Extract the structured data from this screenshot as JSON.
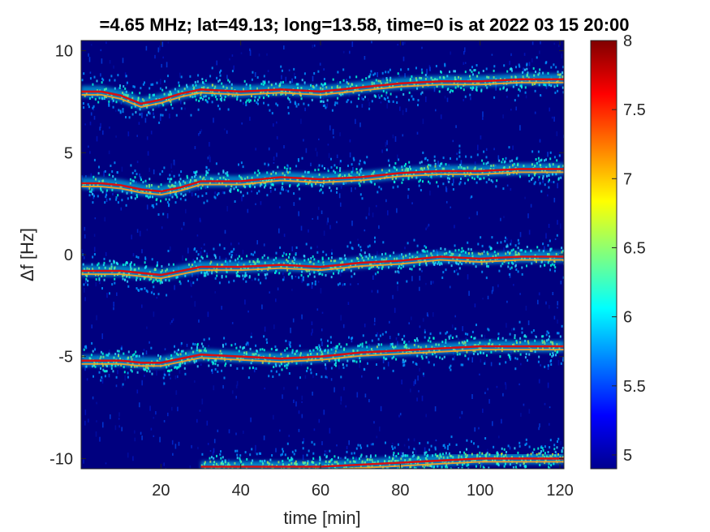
{
  "chart_data": {
    "type": "heatmap",
    "title": "=4.65 MHz;  lat=49.13; long=13.58, time=0 is at 2022 03 15 20:00",
    "xlabel": "time [min]",
    "ylabel": "Δf [Hz]",
    "xlim": [
      0,
      121
    ],
    "ylim": [
      -10.5,
      10.5
    ],
    "x_ticks": [
      20,
      40,
      60,
      80,
      100,
      120
    ],
    "y_ticks": [
      10,
      5,
      0,
      -5,
      -10
    ],
    "colorbar": {
      "range": [
        4.9,
        8
      ],
      "ticks": [
        8,
        7.5,
        7,
        6.5,
        6,
        5.5,
        5
      ],
      "colormap": "jet"
    },
    "background_color": "#00007f",
    "traces": [
      {
        "x": [
          0,
          5,
          10,
          15,
          20,
          25,
          30,
          40,
          50,
          60,
          70,
          80,
          90,
          100,
          110,
          121
        ],
        "y": [
          8.0,
          8.0,
          7.8,
          7.4,
          7.6,
          7.9,
          8.1,
          8.0,
          8.1,
          8.0,
          8.2,
          8.4,
          8.5,
          8.5,
          8.6,
          8.6
        ]
      },
      {
        "x": [
          0,
          5,
          10,
          15,
          20,
          25,
          30,
          40,
          50,
          60,
          70,
          80,
          90,
          100,
          110,
          121
        ],
        "y": [
          3.5,
          3.5,
          3.4,
          3.2,
          3.1,
          3.3,
          3.6,
          3.6,
          3.8,
          3.7,
          3.8,
          4.0,
          4.1,
          4.1,
          4.2,
          4.2
        ]
      },
      {
        "x": [
          0,
          5,
          10,
          15,
          20,
          25,
          30,
          40,
          50,
          60,
          70,
          80,
          90,
          100,
          110,
          121
        ],
        "y": [
          -0.8,
          -0.8,
          -0.8,
          -0.9,
          -1.0,
          -0.8,
          -0.6,
          -0.6,
          -0.5,
          -0.6,
          -0.4,
          -0.3,
          -0.1,
          -0.2,
          -0.1,
          -0.1
        ]
      },
      {
        "x": [
          0,
          5,
          10,
          15,
          20,
          25,
          30,
          40,
          50,
          60,
          70,
          80,
          90,
          100,
          110,
          121
        ],
        "y": [
          -5.2,
          -5.2,
          -5.2,
          -5.3,
          -5.3,
          -5.1,
          -4.9,
          -5.0,
          -5.1,
          -5.0,
          -4.8,
          -4.7,
          -4.6,
          -4.5,
          -4.5,
          -4.5
        ]
      },
      {
        "x": [
          30,
          40,
          50,
          60,
          70,
          80,
          90,
          100,
          110,
          121
        ],
        "y": [
          -10.4,
          -10.4,
          -10.4,
          -10.4,
          -10.3,
          -10.2,
          -10.1,
          -10.0,
          -10.0,
          -10.0
        ]
      }
    ]
  }
}
